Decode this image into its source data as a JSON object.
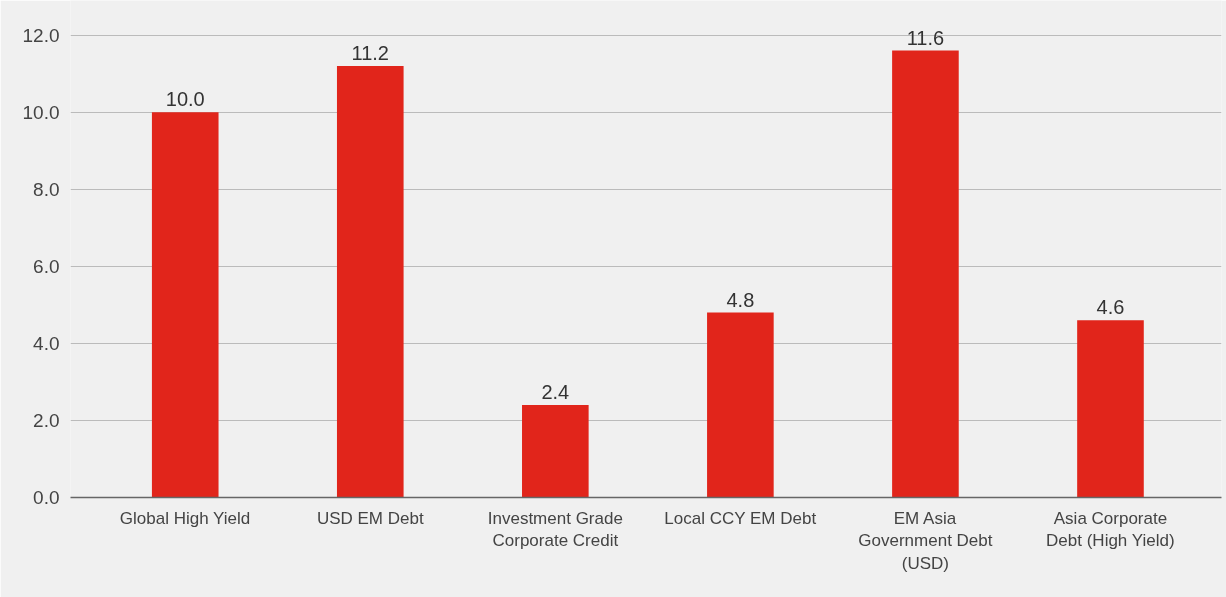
{
  "chart_data": {
    "type": "bar",
    "categories": [
      "Global High Yield",
      "USD EM Debt",
      "Investment Grade Corporate Credit",
      "Local CCY EM Debt",
      "EM Asia Government Debt (USD)",
      "Asia Corporate Debt (High Yield)"
    ],
    "values": [
      10.0,
      11.2,
      2.4,
      4.8,
      11.6,
      4.6
    ],
    "value_labels": [
      "10.0",
      "11.2",
      "2.4",
      "4.8",
      "11.6",
      "4.6"
    ],
    "color": "#e1251b",
    "ylim": [
      0,
      12.9
    ],
    "yticks": [
      {
        "value": 0,
        "label": "0.0"
      },
      {
        "value": 2,
        "label": "2.0"
      },
      {
        "value": 4,
        "label": "4.0"
      },
      {
        "value": 6,
        "label": "6.0"
      },
      {
        "value": 8,
        "label": "8.0"
      },
      {
        "value": 10,
        "label": "10.0"
      },
      {
        "value": 12,
        "label": "12.0"
      }
    ],
    "grid": "y"
  }
}
